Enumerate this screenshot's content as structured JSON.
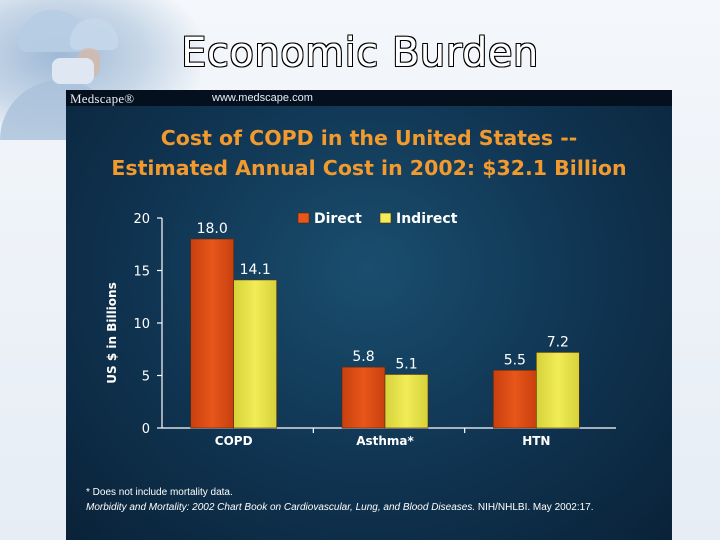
{
  "page": {
    "title": "Economic Burden"
  },
  "slide": {
    "brand": "Medscape®",
    "url": "www.medscape.com",
    "title_line1": "Cost of COPD in the United States --",
    "title_line2": "Estimated Annual Cost in 2002: $32.1 Billion",
    "footnote": "* Does not include mortality data.",
    "source_italic": "Morbidity and Mortality: 2002 Chart Book on Cardiovascular, Lung, and Blood Diseases.",
    "source_rest": "NIH/NHLBI. May 2002:17."
  },
  "colors": {
    "direct": "#e8561a",
    "indirect": "#f1ec57",
    "axis": "#ffffff",
    "title": "#f29a2e"
  },
  "chart_data": {
    "type": "bar",
    "title": "Cost of COPD in the United States -- Estimated Annual Cost in 2002: $32.1 Billion",
    "xlabel": "",
    "ylabel": "US $ in Billions",
    "ylim": [
      0,
      20
    ],
    "yticks": [
      0,
      5,
      10,
      15,
      20
    ],
    "categories": [
      "COPD",
      "Asthma*",
      "HTN"
    ],
    "series": [
      {
        "name": "Direct",
        "values": [
          18.0,
          5.8,
          5.5
        ],
        "labels": [
          "18.0",
          "5.8",
          "5.5"
        ]
      },
      {
        "name": "Indirect",
        "values": [
          14.1,
          5.1,
          7.2
        ],
        "labels": [
          "14.1",
          "5.1",
          "7.2"
        ]
      }
    ],
    "legend_position": "top-right"
  }
}
